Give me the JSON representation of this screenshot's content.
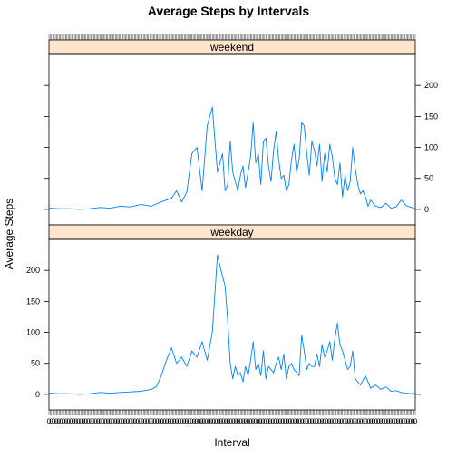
{
  "chart_data": {
    "type": "line",
    "title": "Average Steps by Intervals",
    "xlabel": "Interval",
    "ylabel": "Average Steps",
    "xlim": [
      0,
      287
    ],
    "ylim": [
      -25,
      250
    ],
    "yticks": [
      0,
      50,
      100,
      150,
      200
    ],
    "x_tick_text": "0",
    "panel_order": [
      "weekend",
      "weekday"
    ],
    "panels": [
      {
        "name": "weekend",
        "x": [
          0,
          8,
          16,
          24,
          32,
          40,
          48,
          56,
          64,
          72,
          80,
          88,
          96,
          100,
          104,
          108,
          112,
          116,
          120,
          124,
          128,
          132,
          136,
          138,
          140,
          142,
          144,
          146,
          148,
          150,
          152,
          154,
          156,
          158,
          160,
          162,
          164,
          166,
          168,
          170,
          172,
          174,
          176,
          178,
          180,
          182,
          184,
          186,
          188,
          190,
          192,
          194,
          196,
          198,
          200,
          202,
          204,
          206,
          208,
          210,
          212,
          214,
          216,
          218,
          220,
          222,
          224,
          226,
          228,
          230,
          232,
          234,
          236,
          238,
          240,
          242,
          244,
          246,
          248,
          250,
          252,
          256,
          260,
          264,
          268,
          272,
          276,
          280,
          284,
          287
        ],
        "y": [
          2,
          1,
          1,
          0,
          1,
          3,
          2,
          5,
          4,
          8,
          5,
          12,
          18,
          30,
          12,
          28,
          90,
          100,
          30,
          135,
          165,
          60,
          90,
          30,
          40,
          110,
          60,
          45,
          30,
          55,
          70,
          35,
          60,
          85,
          140,
          75,
          90,
          40,
          110,
          115,
          70,
          45,
          95,
          125,
          80,
          50,
          55,
          30,
          40,
          80,
          105,
          60,
          80,
          140,
          135,
          90,
          55,
          110,
          95,
          70,
          105,
          45,
          90,
          60,
          105,
          85,
          50,
          40,
          75,
          20,
          55,
          30,
          45,
          100,
          65,
          40,
          25,
          30,
          20,
          5,
          15,
          5,
          3,
          10,
          2,
          4,
          15,
          6,
          3,
          2
        ]
      },
      {
        "name": "weekday",
        "x": [
          0,
          8,
          16,
          24,
          32,
          40,
          48,
          56,
          64,
          72,
          80,
          84,
          88,
          92,
          96,
          100,
          104,
          108,
          112,
          116,
          120,
          124,
          128,
          132,
          136,
          138,
          140,
          142,
          144,
          146,
          148,
          150,
          152,
          154,
          156,
          158,
          160,
          162,
          164,
          166,
          168,
          170,
          172,
          174,
          176,
          178,
          180,
          182,
          184,
          186,
          188,
          190,
          192,
          194,
          196,
          198,
          200,
          202,
          204,
          206,
          208,
          210,
          212,
          214,
          216,
          218,
          220,
          222,
          224,
          226,
          228,
          230,
          232,
          234,
          236,
          238,
          240,
          244,
          248,
          252,
          256,
          260,
          264,
          268,
          272,
          276,
          280,
          284,
          287
        ],
        "y": [
          2,
          1,
          1,
          0,
          1,
          3,
          2,
          3,
          4,
          5,
          8,
          12,
          30,
          55,
          75,
          50,
          60,
          45,
          70,
          60,
          85,
          55,
          100,
          225,
          190,
          175,
          120,
          50,
          25,
          45,
          30,
          35,
          20,
          45,
          30,
          55,
          85,
          40,
          50,
          30,
          70,
          25,
          45,
          40,
          35,
          50,
          60,
          40,
          65,
          25,
          45,
          50,
          40,
          35,
          30,
          95,
          70,
          40,
          50,
          45,
          45,
          65,
          45,
          80,
          60,
          70,
          85,
          55,
          90,
          115,
          80,
          70,
          55,
          40,
          45,
          70,
          25,
          15,
          30,
          10,
          15,
          8,
          12,
          5,
          6,
          3,
          2,
          1,
          2
        ]
      }
    ]
  }
}
